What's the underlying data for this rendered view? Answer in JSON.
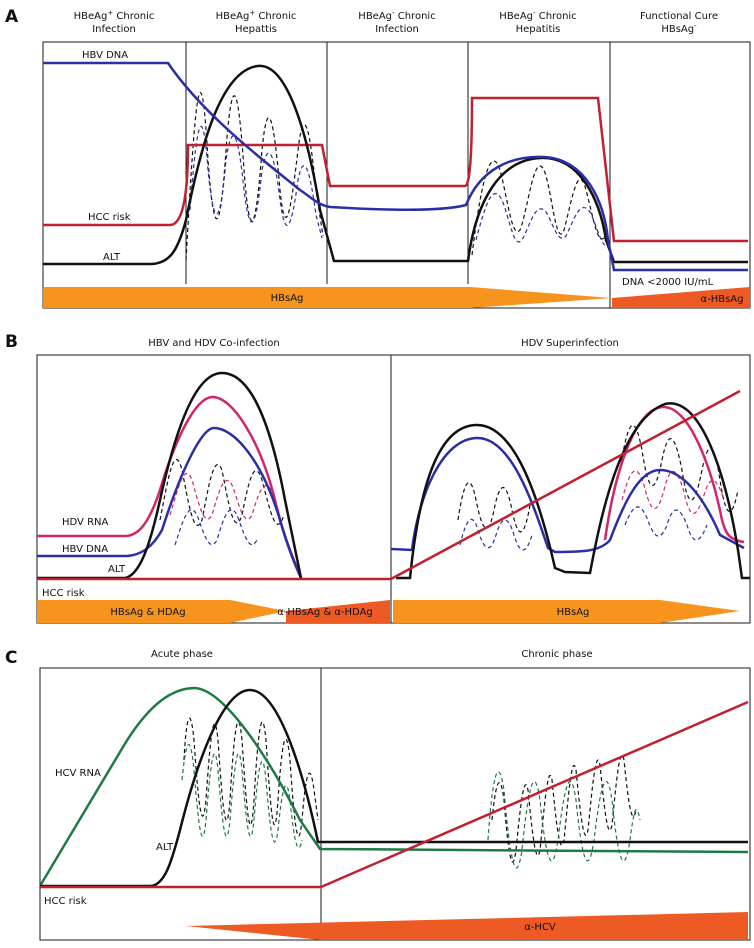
{
  "panels": {
    "a": {
      "letter": "A",
      "phases": [
        {
          "l1": "HBeAg",
          "sup": "+",
          "l1b": " Chronic",
          "l2": "Infection"
        },
        {
          "l1": "HBeAg",
          "sup": "+",
          "l1b": " Chronic",
          "l2": "Hepattis"
        },
        {
          "l1": "HBeAg",
          "sup": "-",
          "l1b": " Chronic",
          "l2": "Infection"
        },
        {
          "l1": "HBeAg",
          "sup": "-",
          "l1b": " Chronic",
          "l2": "Hepatitis"
        },
        {
          "l1": "Functional Cure",
          "sup": "",
          "l1b": "",
          "l2": "HBsAg",
          "l2sup": "-"
        }
      ],
      "labels": {
        "hbv_dna": "HBV DNA",
        "hcc_risk": "HCC risk",
        "alt": "ALT",
        "dna_threshold": "DNA <2000 IU/mL"
      },
      "bars": {
        "hbsag": "HBsAg",
        "anti_hbsag": "α-HBsAg"
      }
    },
    "b": {
      "letter": "B",
      "phases": [
        "HBV and HDV Co-infection",
        "HDV Superinfection"
      ],
      "labels": {
        "hdv_rna": "HDV RNA",
        "hbv_dna": "HBV DNA",
        "alt": "ALT",
        "hcc_risk": "HCC risk"
      },
      "bars": {
        "left": "HBsAg & HDAg",
        "anti": "α-HBsAg & α-HDAg",
        "right": "HBsAg"
      }
    },
    "c": {
      "letter": "C",
      "phases": [
        "Acute phase",
        "Chronic phase"
      ],
      "labels": {
        "hcv_rna": "HCV RNA",
        "alt": "ALT",
        "hcc_risk": "HCC risk"
      },
      "bars": {
        "anti_hcv": "α-HCV"
      }
    }
  },
  "colors": {
    "hbv_dna": "#2b2fa6",
    "hcc_risk": "#c0202f",
    "alt": "#111111",
    "hdv_rna": "#d3266a",
    "hcv_rna": "#1f7a45",
    "bar_orange": "#f7941d",
    "bar_red": "#ee5a24"
  }
}
